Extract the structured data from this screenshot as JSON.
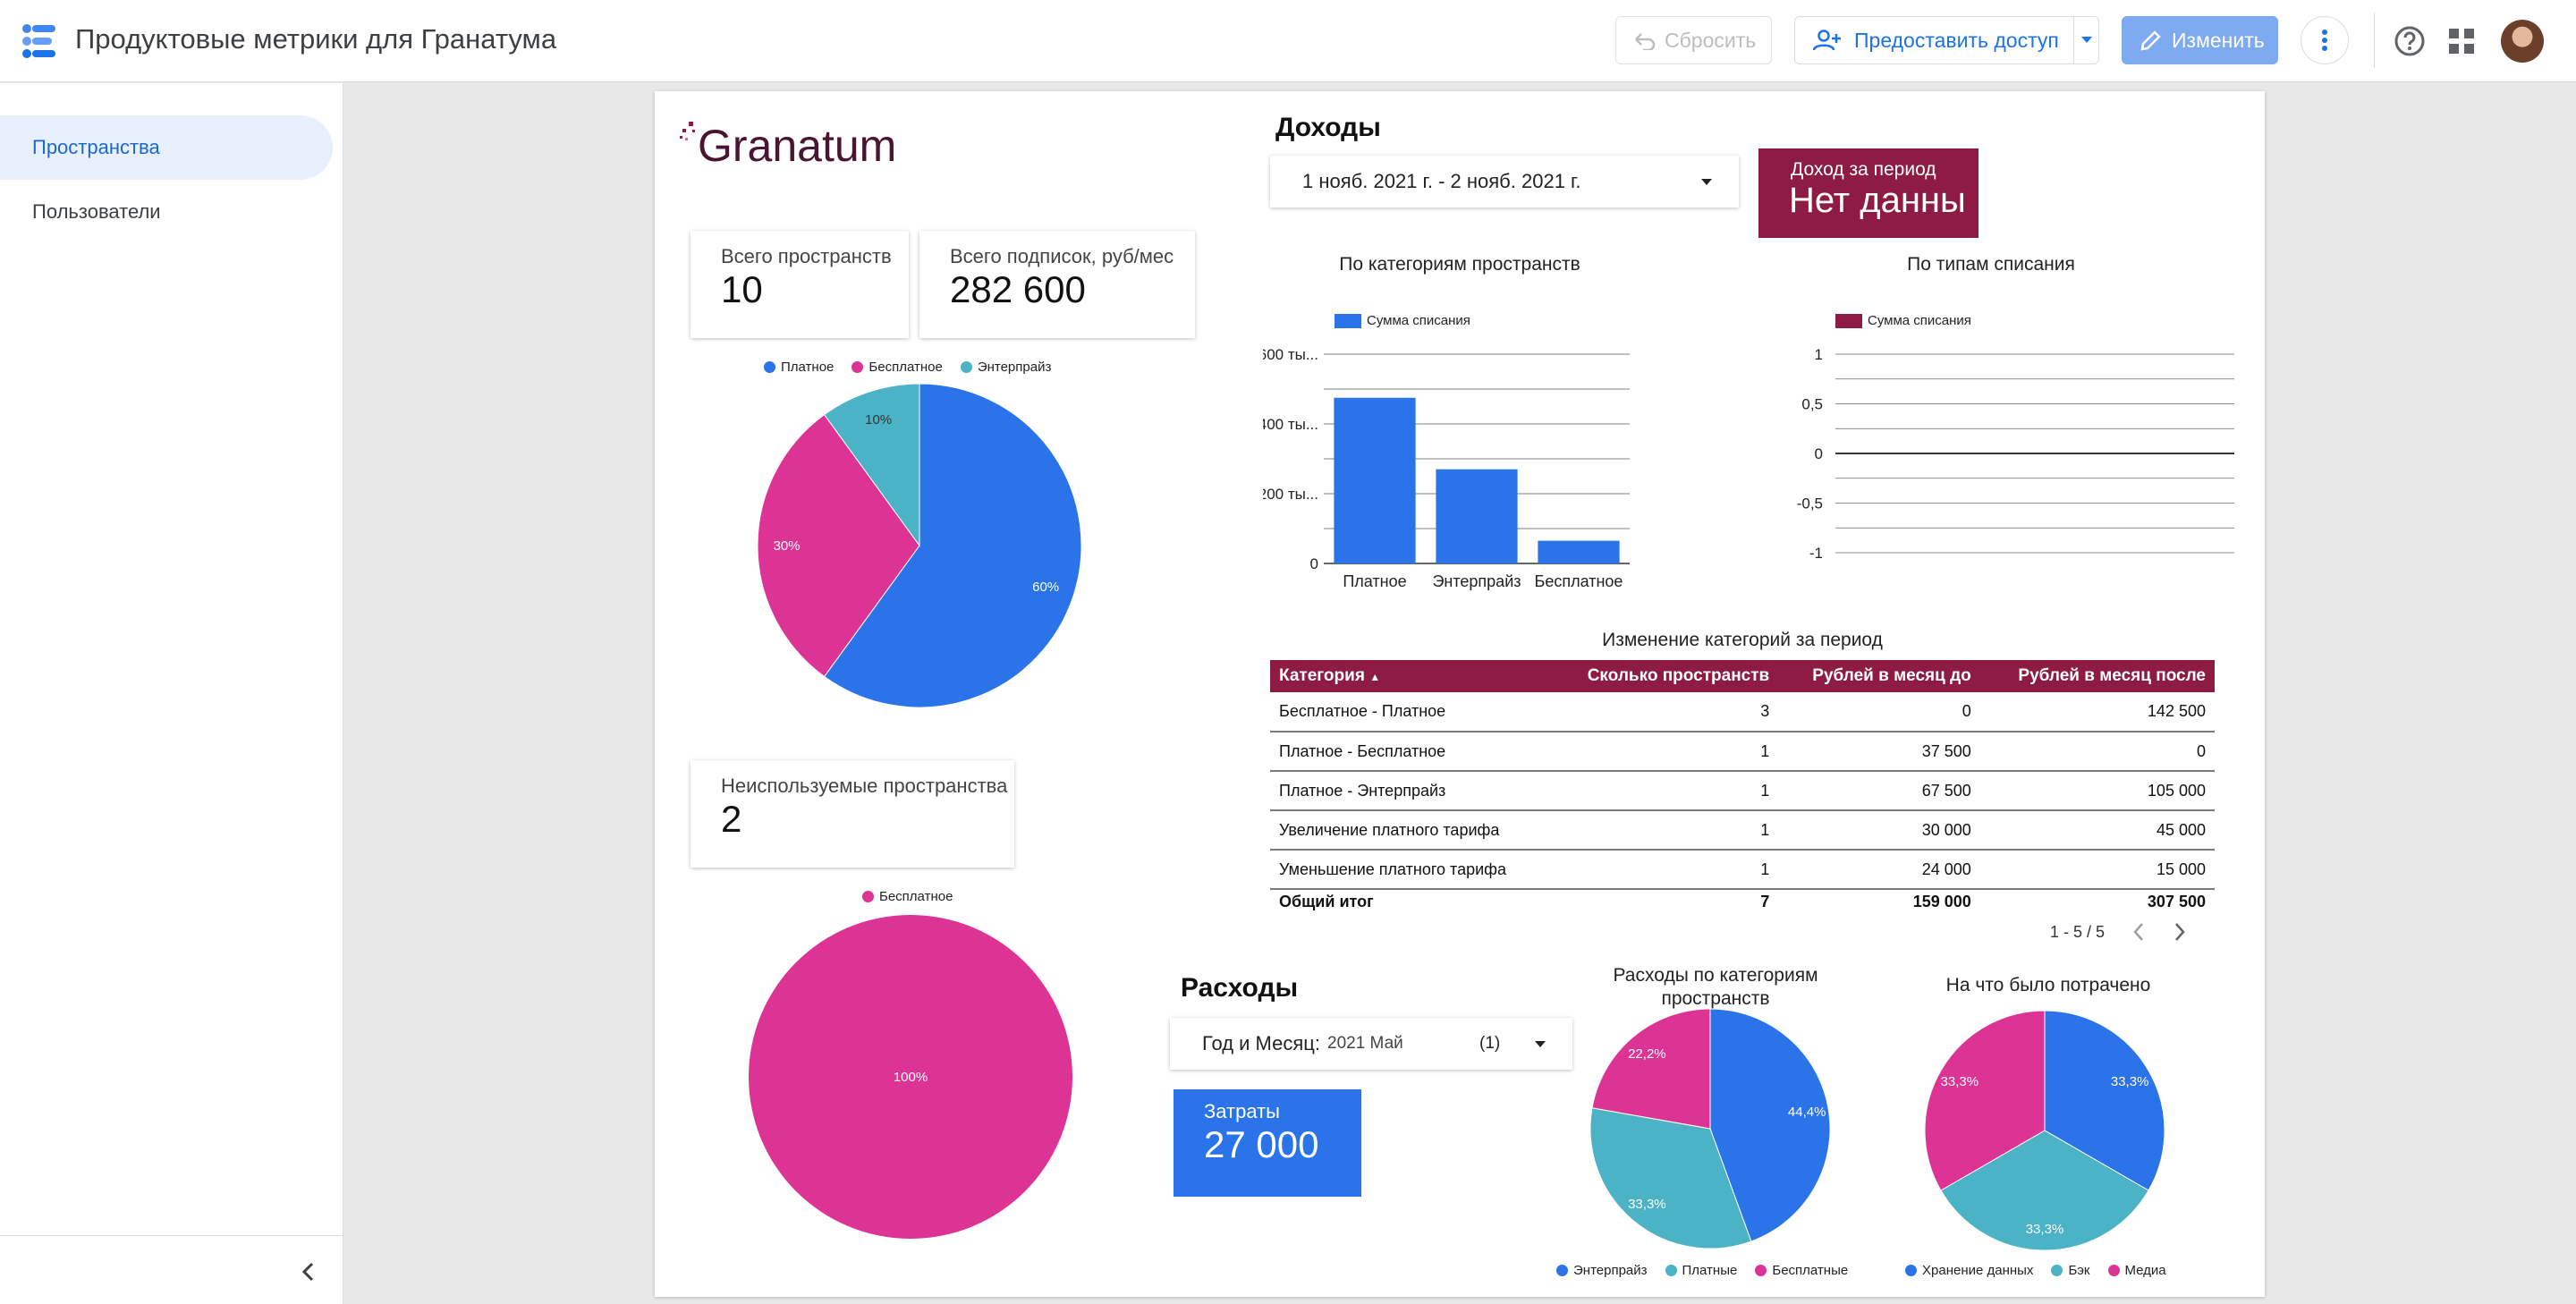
{
  "header": {
    "title": "Продуктовые метрики для Гранатума",
    "reset_label": "Сбросить",
    "share_label": "Предоставить доступ",
    "edit_label": "Изменить"
  },
  "sidebar": {
    "items": [
      {
        "label": "Пространства",
        "active": true
      },
      {
        "label": "Пользователи",
        "active": false
      }
    ]
  },
  "report": {
    "brand": "Granatum",
    "cards": {
      "total_spaces": {
        "label": "Всего пространств",
        "value": "10"
      },
      "total_subs": {
        "label": "Всего подписок, руб/мес",
        "value": "282 600"
      },
      "unused_spaces": {
        "label": "Неиспользуемые пространства",
        "value": "2"
      },
      "income_period": {
        "label": "Доход за период",
        "value": "Нет данны"
      },
      "costs": {
        "label": "Затраты",
        "value": "27 000"
      }
    },
    "income": {
      "title": "Доходы",
      "date_range": "1 нояб. 2021 г. - 2 нояб. 2021 г."
    },
    "expenses": {
      "title": "Расходы",
      "filter_label": "Год и Месяц:",
      "filter_value": "2021 Май",
      "filter_count": "(1)"
    },
    "table": {
      "title": "Изменение категорий за период",
      "columns": [
        "Категория",
        "Сколько пространств",
        "Рублей в месяц до",
        "Рублей в месяц после"
      ],
      "rows": [
        [
          "Бесплатное - Платное",
          "3",
          "0",
          "142 500"
        ],
        [
          "Платное - Бесплатное",
          "1",
          "37 500",
          "0"
        ],
        [
          "Платное - Энтерпрайз",
          "1",
          "67 500",
          "105 000"
        ],
        [
          "Увеличение платного тарифа",
          "1",
          "30 000",
          "45 000"
        ],
        [
          "Уменьшение платного тарифа",
          "1",
          "24 000",
          "15 000"
        ]
      ],
      "total": [
        "Общий итог",
        "7",
        "159 000",
        "307 500"
      ],
      "pager": "1 - 5 / 5"
    }
  },
  "colors": {
    "blue": "#2a73e8",
    "pink": "#dd3394",
    "teal": "#4cb2c6",
    "brand": "#8d1b43"
  },
  "chart_data": [
    {
      "type": "pie",
      "categories": [
        "Платное",
        "Бесплатное",
        "Энтерпрайз"
      ],
      "values": [
        60,
        30,
        10
      ],
      "labels": [
        "60%",
        "30%",
        "10%"
      ]
    },
    {
      "type": "pie",
      "categories": [
        "Бесплатное"
      ],
      "values": [
        100
      ],
      "labels": [
        "100%"
      ]
    },
    {
      "type": "bar",
      "title": "По категориям пространств",
      "categories": [
        "Платное",
        "Энтерпрайз",
        "Бесплатное"
      ],
      "series": [
        {
          "name": "Сумма списания",
          "values": [
            475000,
            270000,
            65000
          ]
        }
      ],
      "yticks": [
        "600 ты...",
        "400 ты...",
        "200 ты...",
        "0"
      ],
      "ylim": [
        0,
        600000
      ],
      "legend": "top-left"
    },
    {
      "type": "line",
      "title": "По типам списания",
      "series": [
        {
          "name": "Сумма списания",
          "values": []
        }
      ],
      "yticks": [
        "1",
        "0,5",
        "0",
        "-0,5",
        "-1"
      ],
      "ylim": [
        -1,
        1
      ],
      "legend": "top-left"
    },
    {
      "type": "pie",
      "title": "Расходы по категориям пространств",
      "categories": [
        "Энтерпрайз",
        "Платные",
        "Бесплатные"
      ],
      "values": [
        44.4,
        33.3,
        22.2
      ],
      "labels": [
        "44,4%",
        "33,3%",
        "22,2%"
      ],
      "legend": "bottom"
    },
    {
      "type": "pie",
      "title": "На что было потрачено",
      "categories": [
        "Хранение данных",
        "Бэк",
        "Медиа"
      ],
      "values": [
        33.3,
        33.3,
        33.3
      ],
      "labels": [
        "33,3%",
        "33,3%",
        "33,3%"
      ],
      "legend": "bottom"
    }
  ]
}
